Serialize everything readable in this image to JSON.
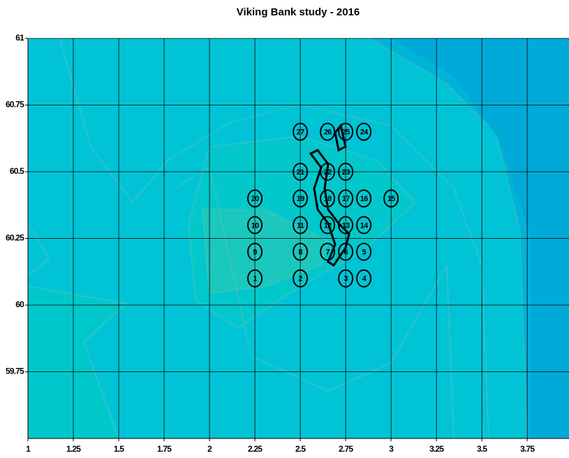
{
  "chart_data": {
    "type": "scatter",
    "title": "Viking Bank study - 2016",
    "labels": [
      "1",
      "2",
      "3",
      "4",
      "5",
      "6",
      "7",
      "8",
      "9",
      "10",
      "11",
      "12",
      "13",
      "14",
      "15",
      "16",
      "17",
      "18",
      "19",
      "20",
      "21",
      "22",
      "23",
      "24",
      "25",
      "26",
      "27"
    ],
    "x": [
      2.25,
      2.5,
      2.75,
      2.85,
      2.85,
      2.75,
      2.65,
      2.5,
      2.25,
      2.25,
      2.5,
      2.65,
      2.75,
      2.85,
      3.0,
      2.85,
      2.75,
      2.65,
      2.5,
      2.25,
      2.5,
      2.65,
      2.75,
      2.85,
      2.75,
      2.65,
      2.5
    ],
    "y": [
      60.1,
      60.1,
      60.1,
      60.1,
      60.2,
      60.2,
      60.2,
      60.2,
      60.2,
      60.3,
      60.3,
      60.3,
      60.3,
      60.3,
      60.4,
      60.4,
      60.4,
      60.4,
      60.4,
      60.4,
      60.5,
      60.5,
      60.5,
      60.65,
      60.65,
      60.65,
      60.65
    ],
    "xlim": [
      1,
      3.98
    ],
    "ylim": [
      59.5,
      61
    ],
    "xticks": [
      1,
      1.25,
      1.5,
      1.75,
      2,
      2.25,
      2.5,
      2.75,
      3,
      3.25,
      3.5,
      3.75
    ],
    "yticks": [
      60.75,
      60.5,
      60.25,
      60,
      59.75,
      61
    ],
    "grid": true
  }
}
